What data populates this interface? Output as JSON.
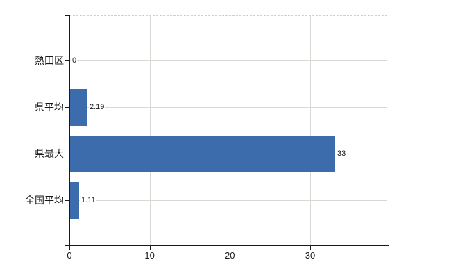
{
  "chart_data": {
    "type": "bar",
    "orientation": "horizontal",
    "title": "",
    "xlabel": "",
    "ylabel": "",
    "categories": [
      "熱田区",
      "県平均",
      "県最大",
      "全国平均"
    ],
    "values": [
      0,
      2.19,
      33,
      1.11
    ],
    "value_labels": [
      "0",
      "2.19",
      "33",
      "1.11"
    ],
    "xlim": [
      0,
      39.6
    ],
    "xticks": [
      0,
      10,
      20,
      30
    ],
    "xtick_labels": [
      "0",
      "10",
      "20",
      "30"
    ],
    "grid": true,
    "legend": false,
    "colors": {
      "bar": "#3c6cac",
      "gridline": "#d8d8d4",
      "top_boundary": "#cdd1cc",
      "axis": "#1a1a1a",
      "text": "#1a1a1a",
      "background": "#ffffff"
    }
  }
}
